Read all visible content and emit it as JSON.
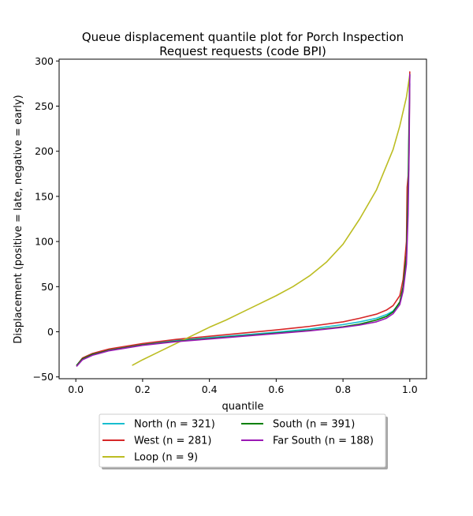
{
  "chart_data": {
    "type": "line",
    "title": "Queue displacement quantile plot for Porch Inspection",
    "title_line2": "Request  requests (code BPI)",
    "xlabel": "quantile",
    "ylabel": "Displacement (positive = late, negative = early)",
    "xlim": [
      -0.05,
      1.05
    ],
    "ylim": [
      -52,
      302
    ],
    "xticks": [
      0.0,
      0.2,
      0.4,
      0.6,
      0.8,
      1.0
    ],
    "xtick_labels": [
      "0.0",
      "0.2",
      "0.4",
      "0.6",
      "0.8",
      "1.0"
    ],
    "yticks": [
      -50,
      0,
      50,
      100,
      150,
      200,
      250,
      300
    ],
    "ytick_labels": [
      "−50",
      "0",
      "50",
      "100",
      "150",
      "200",
      "250",
      "300"
    ],
    "grid": false,
    "legend_position": "below",
    "series": [
      {
        "name": "North (n = 321)",
        "color": "#17becf",
        "x": [
          0.003,
          0.02,
          0.05,
          0.1,
          0.2,
          0.3,
          0.4,
          0.5,
          0.6,
          0.7,
          0.8,
          0.85,
          0.9,
          0.93,
          0.95,
          0.97,
          0.98,
          0.99,
          0.995,
          0.998,
          1.0
        ],
        "y": [
          -37,
          -29,
          -24,
          -19.5,
          -13.5,
          -9.5,
          -6.5,
          -3.5,
          -0.5,
          3,
          8,
          11,
          15,
          19,
          23,
          32,
          48,
          80,
          150,
          230,
          275
        ]
      },
      {
        "name": "West (n = 281)",
        "color": "#d62728",
        "x": [
          0.003,
          0.02,
          0.05,
          0.1,
          0.2,
          0.3,
          0.4,
          0.5,
          0.6,
          0.7,
          0.8,
          0.85,
          0.9,
          0.93,
          0.95,
          0.97,
          0.98,
          0.99,
          0.992,
          0.997,
          1.0
        ],
        "y": [
          -37,
          -29,
          -24,
          -19,
          -13,
          -8.5,
          -5,
          -1.5,
          2,
          6,
          11,
          15,
          19.5,
          24,
          29,
          40,
          58,
          100,
          160,
          180,
          288
        ]
      },
      {
        "name": "Loop (n = 9)",
        "color": "#bcbd22",
        "x": [
          0.17,
          0.2,
          0.25,
          0.3,
          0.35,
          0.4,
          0.45,
          0.5,
          0.55,
          0.6,
          0.65,
          0.7,
          0.75,
          0.8,
          0.85,
          0.9,
          0.95,
          0.97,
          0.99,
          1.0
        ],
        "y": [
          -37,
          -31,
          -22,
          -13,
          -4,
          5,
          13,
          22,
          31,
          40,
          50,
          62,
          77,
          97,
          125,
          157,
          202,
          228,
          260,
          285
        ]
      },
      {
        "name": "South (n = 391)",
        "color": "#008000",
        "x": [
          0.003,
          0.02,
          0.05,
          0.1,
          0.2,
          0.3,
          0.4,
          0.5,
          0.6,
          0.7,
          0.8,
          0.85,
          0.9,
          0.93,
          0.95,
          0.97,
          0.98,
          0.99,
          0.995,
          0.998,
          1.0
        ],
        "y": [
          -37,
          -30,
          -25,
          -20.5,
          -14.5,
          -10.5,
          -7.5,
          -4.5,
          -1.5,
          1.5,
          5.5,
          8.5,
          13,
          17,
          22,
          33,
          50,
          85,
          160,
          240,
          285
        ]
      },
      {
        "name": "Far South (n = 188)",
        "color": "#9b19b5",
        "x": [
          0.003,
          0.02,
          0.05,
          0.1,
          0.2,
          0.3,
          0.4,
          0.5,
          0.6,
          0.7,
          0.8,
          0.85,
          0.9,
          0.93,
          0.95,
          0.97,
          0.98,
          0.99,
          0.995,
          0.998,
          1.0
        ],
        "y": [
          -38,
          -31,
          -26,
          -21,
          -15,
          -11,
          -8,
          -5,
          -2,
          1,
          5,
          7.5,
          11,
          15,
          20,
          30,
          45,
          75,
          130,
          200,
          285
        ]
      }
    ]
  }
}
